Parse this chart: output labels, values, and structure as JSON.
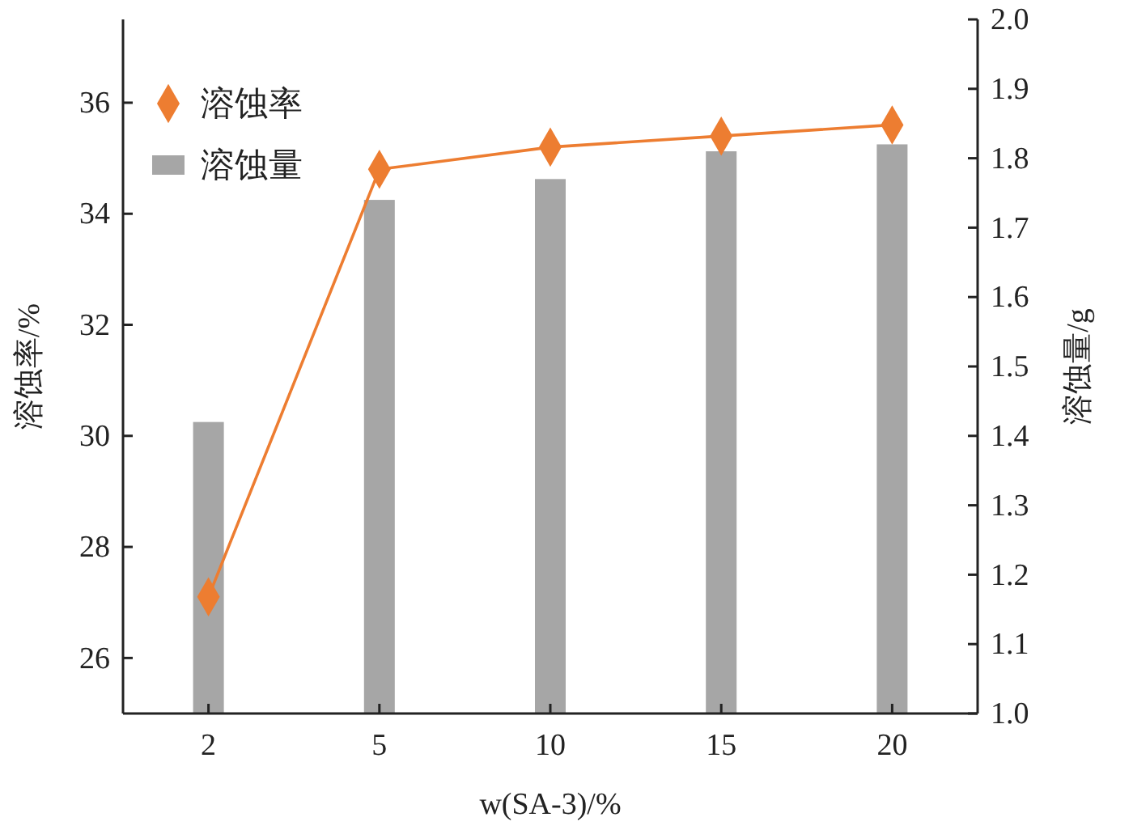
{
  "chart_data": {
    "type": "bar",
    "categories": [
      "2",
      "5",
      "10",
      "15",
      "20"
    ],
    "xlabel": "w(SA-3)/%",
    "ylabel": "溶蚀率/%",
    "y2label": "溶蚀量/g",
    "ylim": [
      25,
      37.5
    ],
    "yticks": [
      26,
      28,
      30,
      32,
      34,
      36
    ],
    "y2lim": [
      1.0,
      2.0
    ],
    "y2ticks": [
      {
        "value": 1.0,
        "label": "1.0"
      },
      {
        "value": 1.1,
        "label": "1.1"
      },
      {
        "value": 1.2,
        "label": "1.2"
      },
      {
        "value": 1.3,
        "label": "1.3"
      },
      {
        "value": 1.4,
        "label": "1.4"
      },
      {
        "value": 1.5,
        "label": "1.5"
      },
      {
        "value": 1.6,
        "label": "1.6"
      },
      {
        "value": 1.7,
        "label": "1.7"
      },
      {
        "value": 1.8,
        "label": "1.8"
      },
      {
        "value": 1.9,
        "label": "1.9"
      },
      {
        "value": 2.0,
        "label": "2.0"
      }
    ],
    "legend": "top left",
    "grid": false,
    "series": [
      {
        "name": "溶蚀率",
        "type": "line",
        "color": "#ed7d31",
        "marker": "diamond",
        "line_style": "solid",
        "values": [
          27.1,
          34.8,
          35.2,
          35.4,
          35.6
        ]
      },
      {
        "name": "溶蚀量",
        "axis": "y2",
        "color": "#a6a6a6",
        "values": [
          1.42,
          1.74,
          1.77,
          1.81,
          1.82
        ]
      }
    ]
  }
}
